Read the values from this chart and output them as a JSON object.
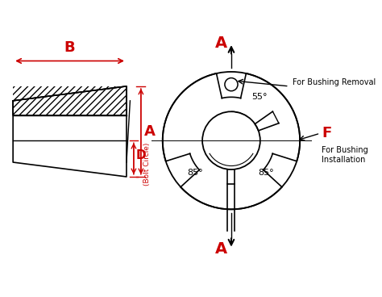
{
  "bg_color": "#ffffff",
  "line_color": "#000000",
  "red_color": "#cc0000",
  "dim_color": "#cc0000",
  "label_A": "A",
  "label_B": "B",
  "label_D": "D",
  "label_F": "F",
  "text_bolt_circle": "(Bolt Circle)",
  "text_removal": "For Bushing Removal",
  "text_install": "For Bushing\nInstallation",
  "text_55": "55°",
  "text_85L": "85°",
  "text_85R": "85°",
  "figsize": [
    4.74,
    3.68
  ],
  "dpi": 100
}
